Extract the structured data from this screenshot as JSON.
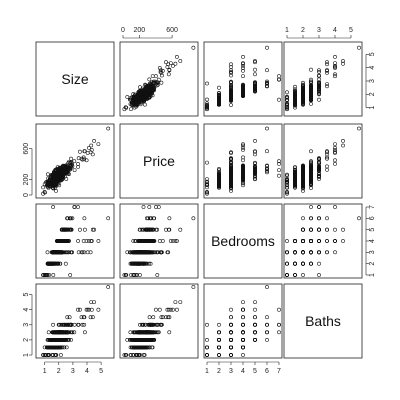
{
  "chart_data": {
    "type": "scatter",
    "layout": "scatterplot-matrix",
    "title": "",
    "variables": [
      {
        "name": "Size",
        "range": [
          0.6,
          5.7
        ],
        "ticks": [
          1,
          2,
          3,
          4,
          5
        ],
        "tick_labels": [
          "1",
          "2",
          "3",
          "4",
          "5"
        ]
      },
      {
        "name": "Price",
        "range": [
          0,
          880
        ],
        "ticks": [
          0,
          200,
          600
        ],
        "tick_labels": [
          "0",
          "200",
          "600"
        ]
      },
      {
        "name": "Bedrooms",
        "range": [
          1,
          7
        ],
        "ticks": [
          1,
          2,
          3,
          4,
          5,
          6,
          7
        ],
        "tick_labels": [
          "1",
          "2",
          "3",
          "4",
          "5",
          "6",
          "7"
        ]
      },
      {
        "name": "Baths",
        "range": [
          1,
          5.5
        ],
        "ticks": [
          1,
          2,
          3,
          4,
          5
        ],
        "tick_labels": [
          "1",
          "2",
          "3",
          "4",
          "5"
        ]
      }
    ],
    "tick_sides": {
      "top": [
        null,
        "Price",
        null,
        "Baths"
      ],
      "right": [
        {
          "row": 0,
          "var": "Size"
        },
        {
          "row": 2,
          "var": "Bedrooms"
        }
      ],
      "bottom": [
        {
          "col": 0,
          "var": "Size"
        },
        {
          "col": 2,
          "var": "Bedrooms"
        }
      ],
      "left": [
        {
          "row": 1,
          "var": "Price"
        },
        {
          "row": 3,
          "var": "Baths"
        }
      ]
    },
    "n_points": 1000,
    "sample_points": [
      {
        "Size": 1.2,
        "Price": 110,
        "Bedrooms": 3,
        "Baths": 1.5
      },
      {
        "Size": 1.5,
        "Price": 165,
        "Bedrooms": 3,
        "Baths": 2
      },
      {
        "Size": 2.0,
        "Price": 210,
        "Bedrooms": 4,
        "Baths": 2.5
      },
      {
        "Size": 2.6,
        "Price": 330,
        "Bedrooms": 4,
        "Baths": 3
      },
      {
        "Size": 3.5,
        "Price": 560,
        "Bedrooms": 5,
        "Baths": 4
      },
      {
        "Size": 4.5,
        "Price": 700,
        "Bedrooms": 5,
        "Baths": 4.5
      },
      {
        "Size": 5.5,
        "Price": 860,
        "Bedrooms": 6,
        "Baths": 5.5
      },
      {
        "Size": 1.0,
        "Price": 40,
        "Bedrooms": 1,
        "Baths": 1
      },
      {
        "Size": 1.6,
        "Price": 250,
        "Bedrooms": 7,
        "Baths": 3
      }
    ]
  }
}
